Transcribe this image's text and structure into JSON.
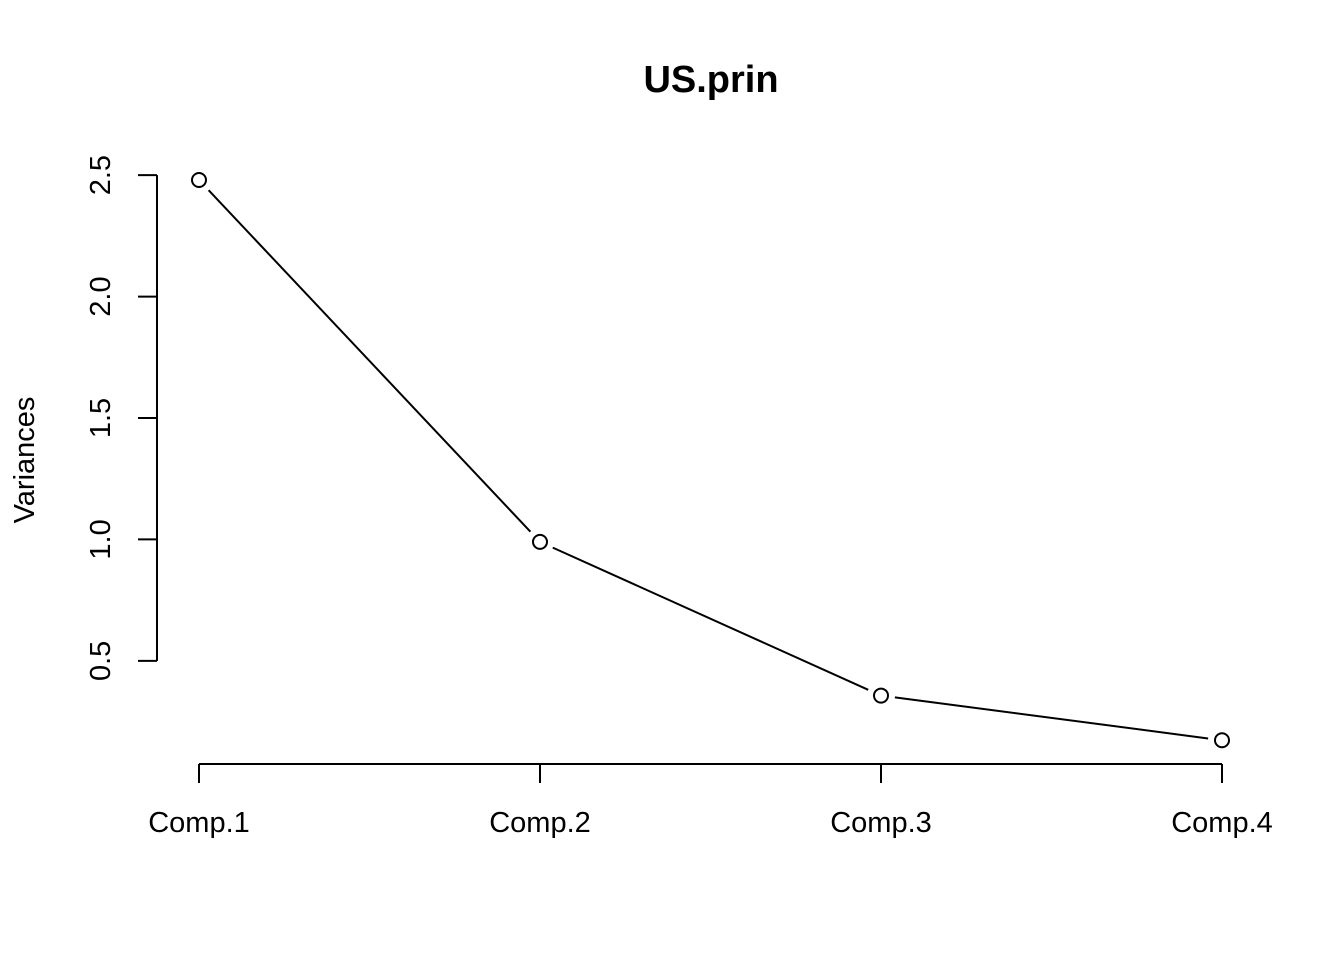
{
  "chart_data": {
    "type": "line",
    "title": "US.prin",
    "xlabel": "",
    "ylabel": "Variances",
    "categories": [
      "Comp.1",
      "Comp.2",
      "Comp.3",
      "Comp.4"
    ],
    "values": [
      2.48,
      0.99,
      0.357,
      0.173
    ],
    "yticks": [
      "0.5",
      "1.0",
      "1.5",
      "2.0",
      "2.5"
    ],
    "ylim": [
      0.17,
      2.48
    ],
    "grid": false,
    "legend": "none",
    "point_style": "open-circle",
    "line_color": "#000000"
  }
}
